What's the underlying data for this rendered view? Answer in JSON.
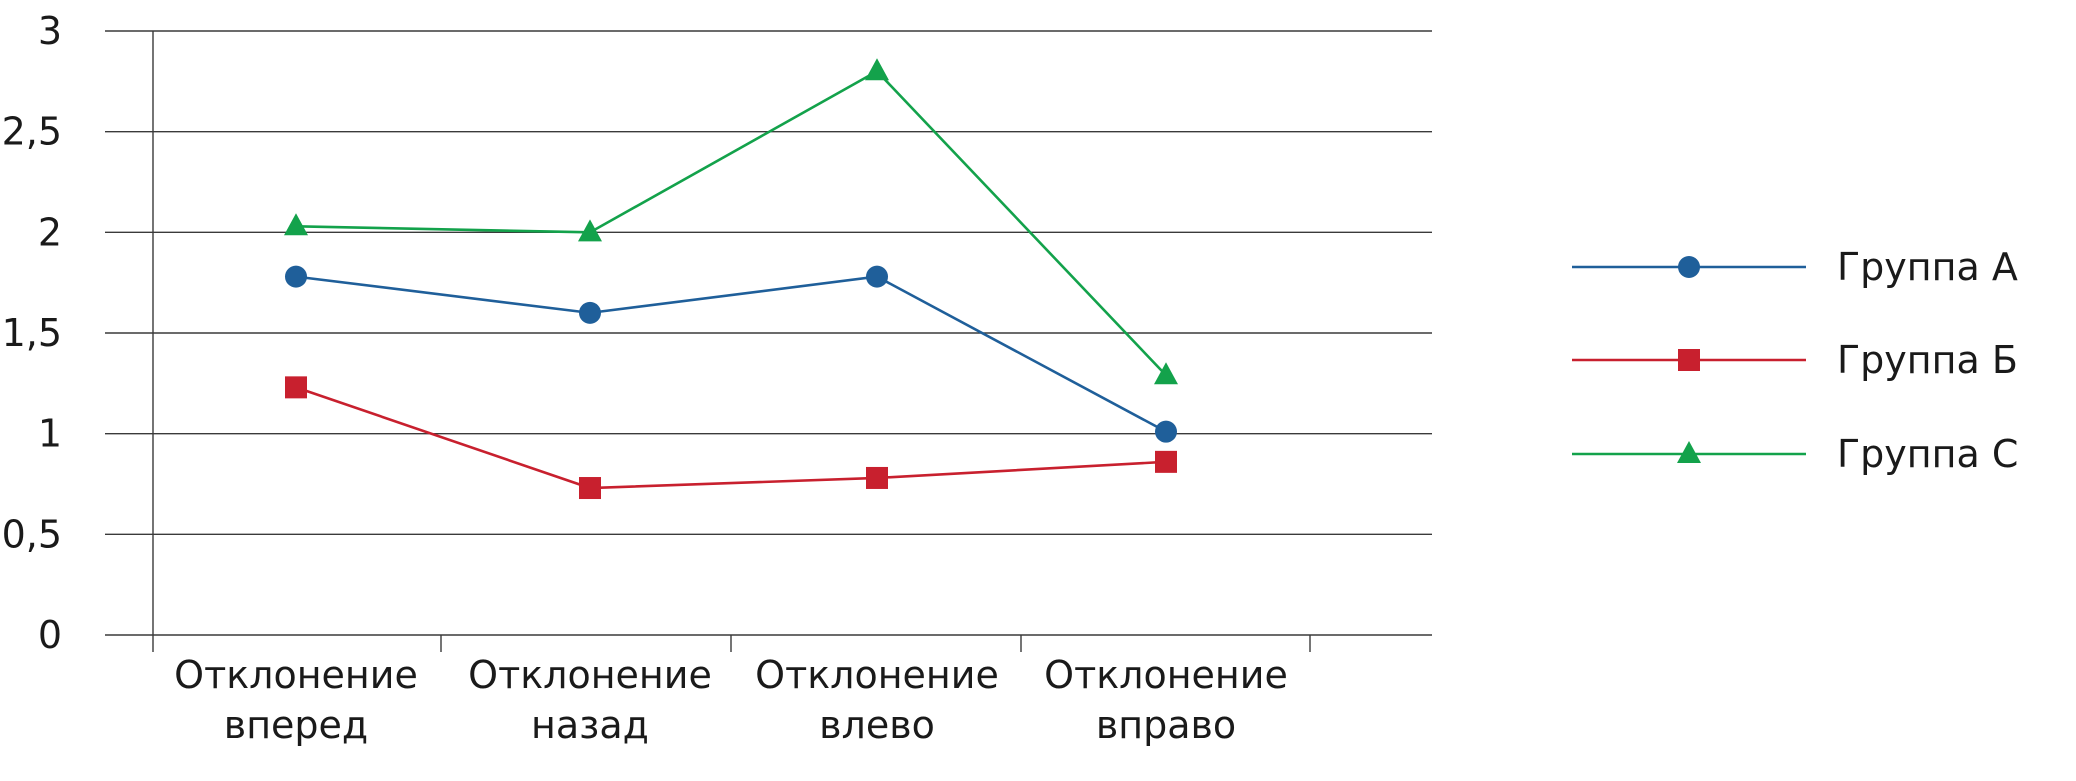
{
  "chart_data": {
    "type": "line",
    "categories": [
      [
        "Отклонение",
        "вперед"
      ],
      [
        "Отклонение",
        "назад"
      ],
      [
        "Отклонение",
        "влево"
      ],
      [
        "Отклонение",
        "вправо"
      ]
    ],
    "ylim": [
      0,
      3
    ],
    "yticks": [
      0,
      0.5,
      1,
      1.5,
      2,
      2.5,
      3
    ],
    "ytick_labels": [
      "0",
      "0,5",
      "1",
      "1,5",
      "2",
      "2,5",
      "3"
    ],
    "grid": true,
    "legend_position": "right",
    "series": [
      {
        "name": "Группа А",
        "values": [
          1.78,
          1.6,
          1.78,
          1.01
        ],
        "color": "#1f5f9a",
        "marker": "circle"
      },
      {
        "name": "Группа Б",
        "values": [
          1.23,
          0.73,
          0.78,
          0.86
        ],
        "color": "#c8202e",
        "marker": "square"
      },
      {
        "name": "Группа С",
        "values": [
          2.03,
          2.0,
          2.8,
          1.29
        ],
        "color": "#13a24b",
        "marker": "triangle"
      }
    ]
  }
}
